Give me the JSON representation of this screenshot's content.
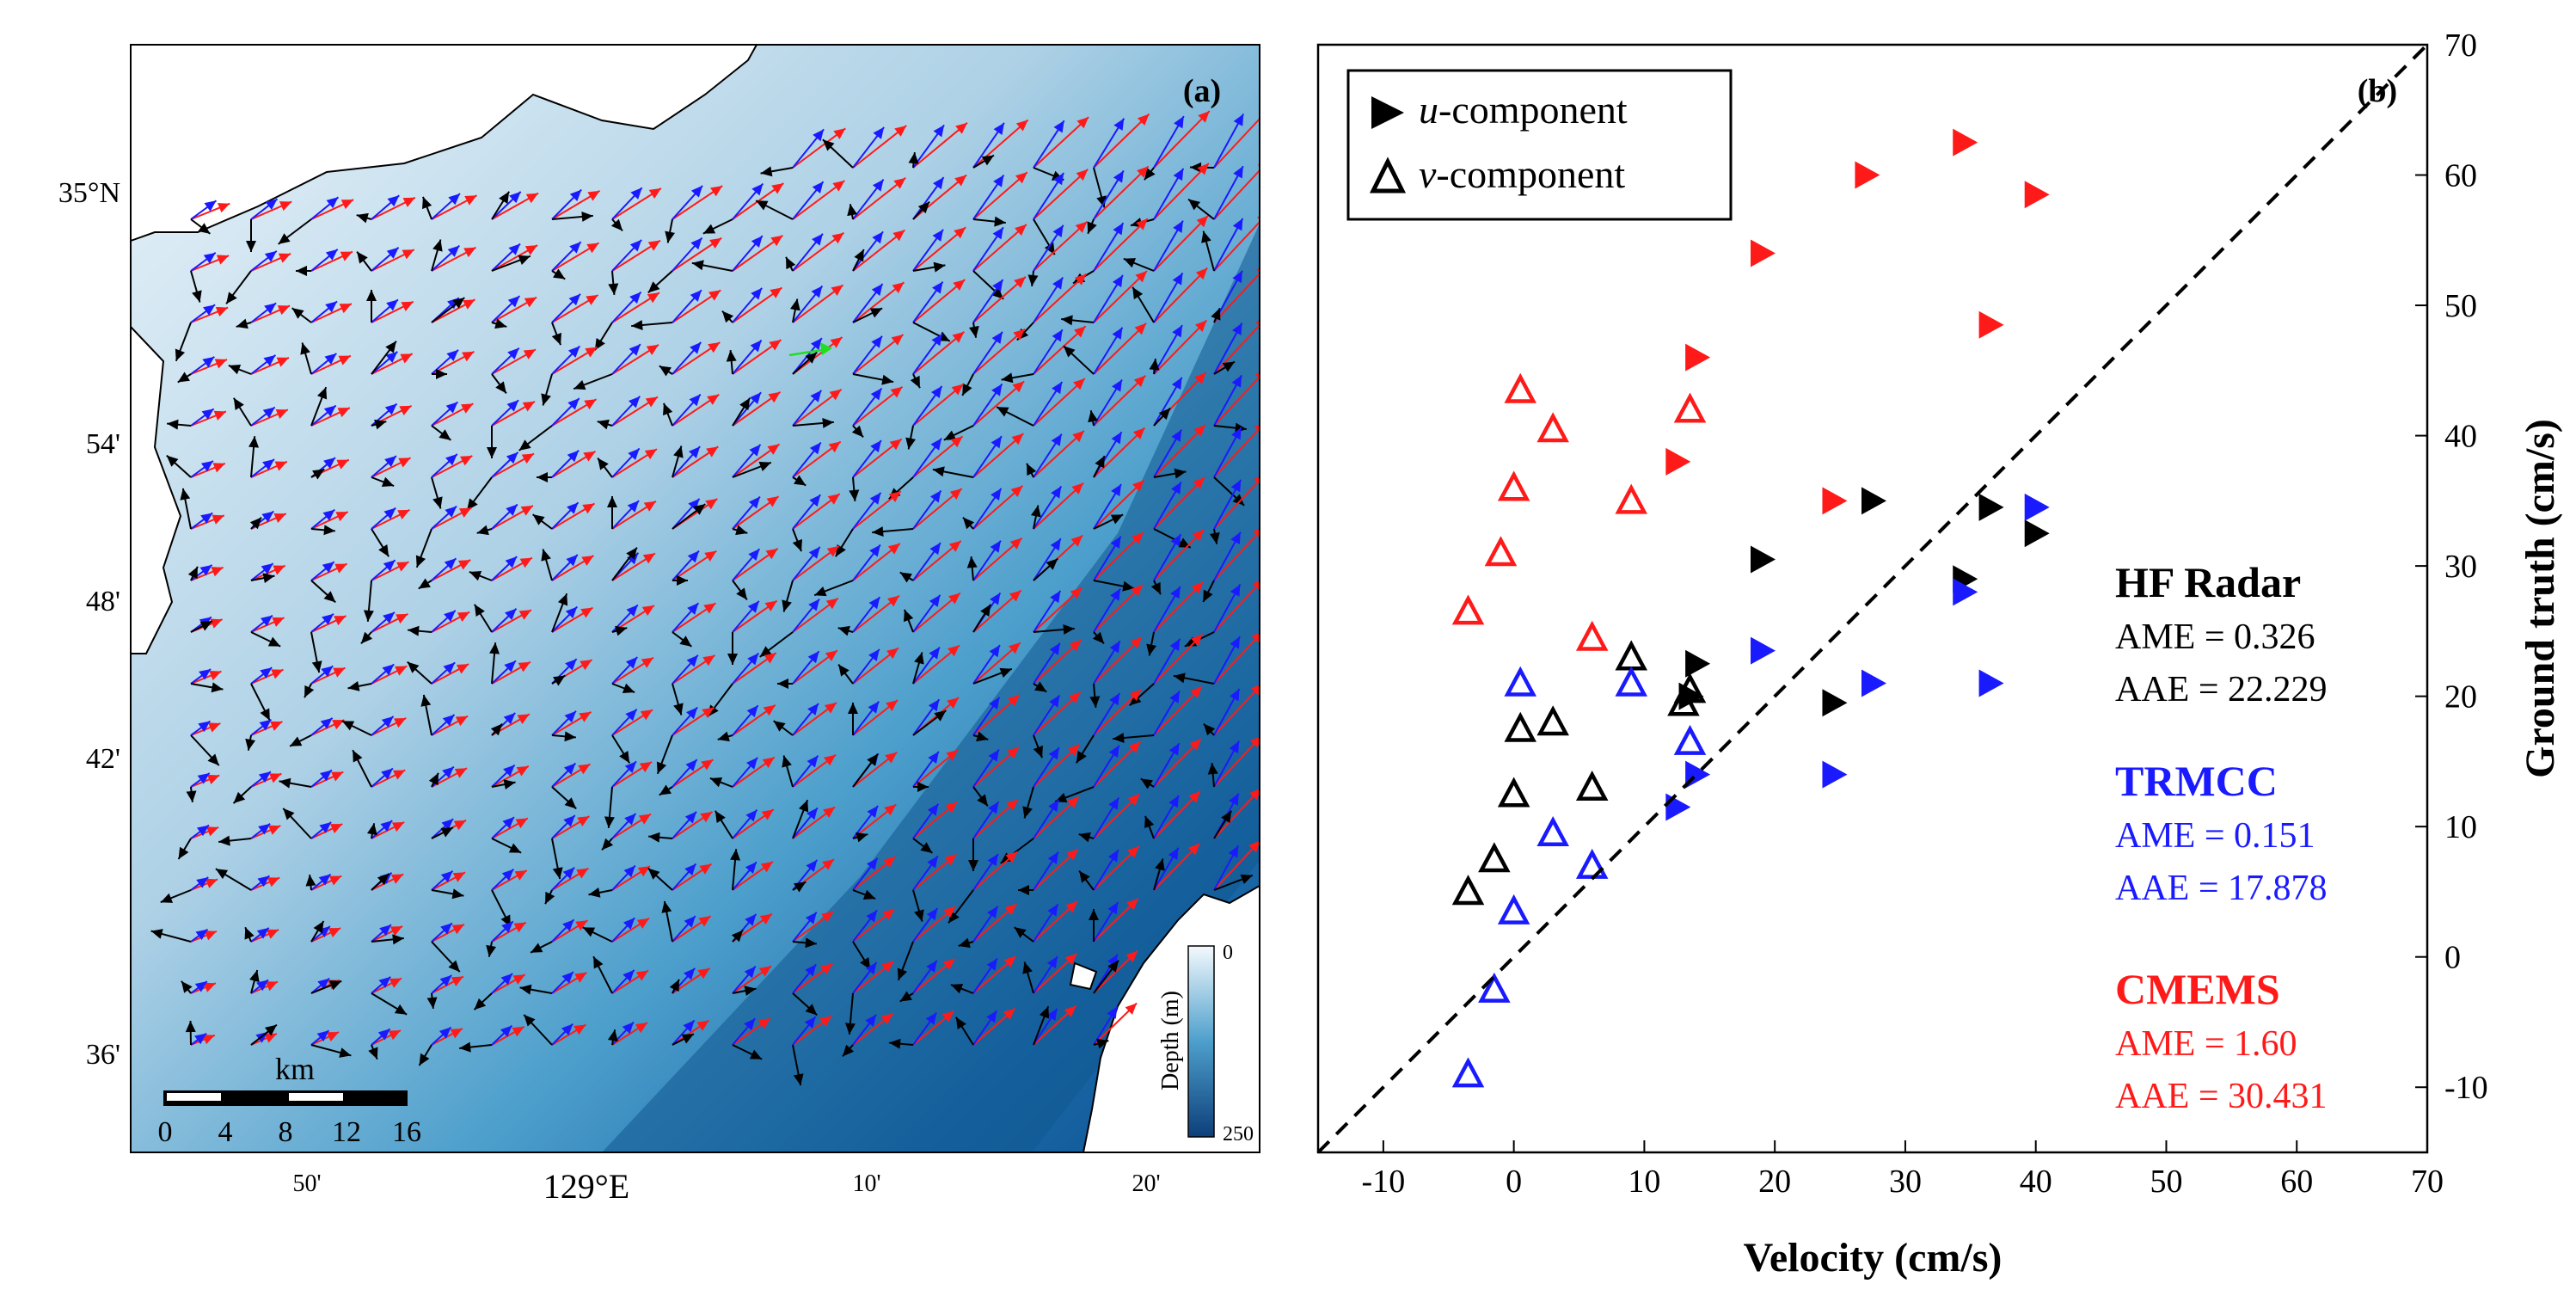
{
  "panel_a": {
    "label": "(a)",
    "lat_labels": [
      "35°N",
      "54'",
      "48'",
      "42'",
      "36'"
    ],
    "lon_labels": [
      "50'",
      "129°E",
      "10'",
      "20'"
    ],
    "scale_bar": {
      "title": "km",
      "ticks": [
        "0",
        "4",
        "8",
        "12",
        "16"
      ]
    },
    "depth_colorbar": {
      "label": "Depth (m)",
      "min_label": "0",
      "max_label": "250",
      "min": 0,
      "max": 250
    },
    "colors": {
      "observed": "#000000",
      "trmcc": "#1a1aff",
      "cmems": "#ff1a1a",
      "highlight": "#22dd22"
    }
  },
  "panel_b": {
    "label": "(b)",
    "legend": [
      {
        "marker": "filled-triangle",
        "prefix": "u",
        "suffix": "-component"
      },
      {
        "marker": "open-triangle",
        "prefix": "v",
        "suffix": "-component"
      }
    ],
    "stats": [
      {
        "name": "HF Radar",
        "ame": "AME = 0.326",
        "aae": "AAE  = 22.229",
        "color": "#000000"
      },
      {
        "name": "TRMCC",
        "ame": "AME = 0.151",
        "aae": "AAE  = 17.878",
        "color": "#1a1aff"
      },
      {
        "name": "CMEMS",
        "ame": "AME = 1.60",
        "aae": "AAE  = 30.431",
        "color": "#ff1a1a"
      }
    ]
  },
  "chart_data": {
    "type": "scatter",
    "title": "",
    "xlabel": "Velocity (cm/s)",
    "ylabel": "Ground truth (cm/s)",
    "xlim": [
      -15,
      70
    ],
    "ylim": [
      -15,
      70
    ],
    "xticks": [
      -10,
      0,
      10,
      20,
      30,
      40,
      50,
      60,
      70
    ],
    "yticks": [
      -10,
      0,
      10,
      20,
      30,
      40,
      50,
      60,
      70
    ],
    "reference_line": "y = x",
    "series": [
      {
        "name": "HF Radar u-component",
        "color": "#000000",
        "marker": "filled-right-triangle",
        "x": [
          19,
          27.5,
          36.5,
          40,
          34.5,
          14,
          13.5,
          24.5
        ],
        "y": [
          30.5,
          35,
          34.5,
          32.5,
          29,
          22.5,
          20,
          19.5
        ]
      },
      {
        "name": "HF Radar v-component",
        "color": "#000000",
        "marker": "open-triangle",
        "x": [
          9,
          3,
          0.5,
          13.5,
          13,
          6,
          0,
          -1.5,
          -3.5
        ],
        "y": [
          23,
          18,
          17.5,
          20.5,
          19.5,
          13,
          12.5,
          7.5,
          5
        ]
      },
      {
        "name": "TRMCC u-component",
        "color": "#1a1aff",
        "marker": "filled-right-triangle",
        "x": [
          19,
          40,
          34.5,
          27.5,
          36.5,
          14,
          24.5,
          12.5
        ],
        "y": [
          23.5,
          34.5,
          28,
          21,
          21,
          14,
          14,
          11.5
        ]
      },
      {
        "name": "TRMCC v-component",
        "color": "#1a1aff",
        "marker": "open-triangle",
        "x": [
          0.5,
          9,
          13.5,
          3,
          6,
          0,
          -1.5,
          -3.5
        ],
        "y": [
          21,
          21,
          16.5,
          9.5,
          7,
          3.5,
          -2.5,
          -9
        ]
      },
      {
        "name": "CMEMS u-component",
        "color": "#ff1a1a",
        "marker": "filled-right-triangle",
        "x": [
          34.5,
          27,
          40,
          19,
          36.5,
          14,
          12.5,
          24.5
        ],
        "y": [
          62.5,
          60,
          58.5,
          54,
          48.5,
          46,
          38,
          35
        ]
      },
      {
        "name": "CMEMS v-component",
        "color": "#ff1a1a",
        "marker": "open-triangle",
        "x": [
          0.5,
          13.5,
          3,
          0,
          9,
          -1,
          -3.5,
          6
        ],
        "y": [
          43.5,
          42,
          40.5,
          36,
          35,
          31,
          26.5,
          24.5
        ]
      }
    ]
  }
}
